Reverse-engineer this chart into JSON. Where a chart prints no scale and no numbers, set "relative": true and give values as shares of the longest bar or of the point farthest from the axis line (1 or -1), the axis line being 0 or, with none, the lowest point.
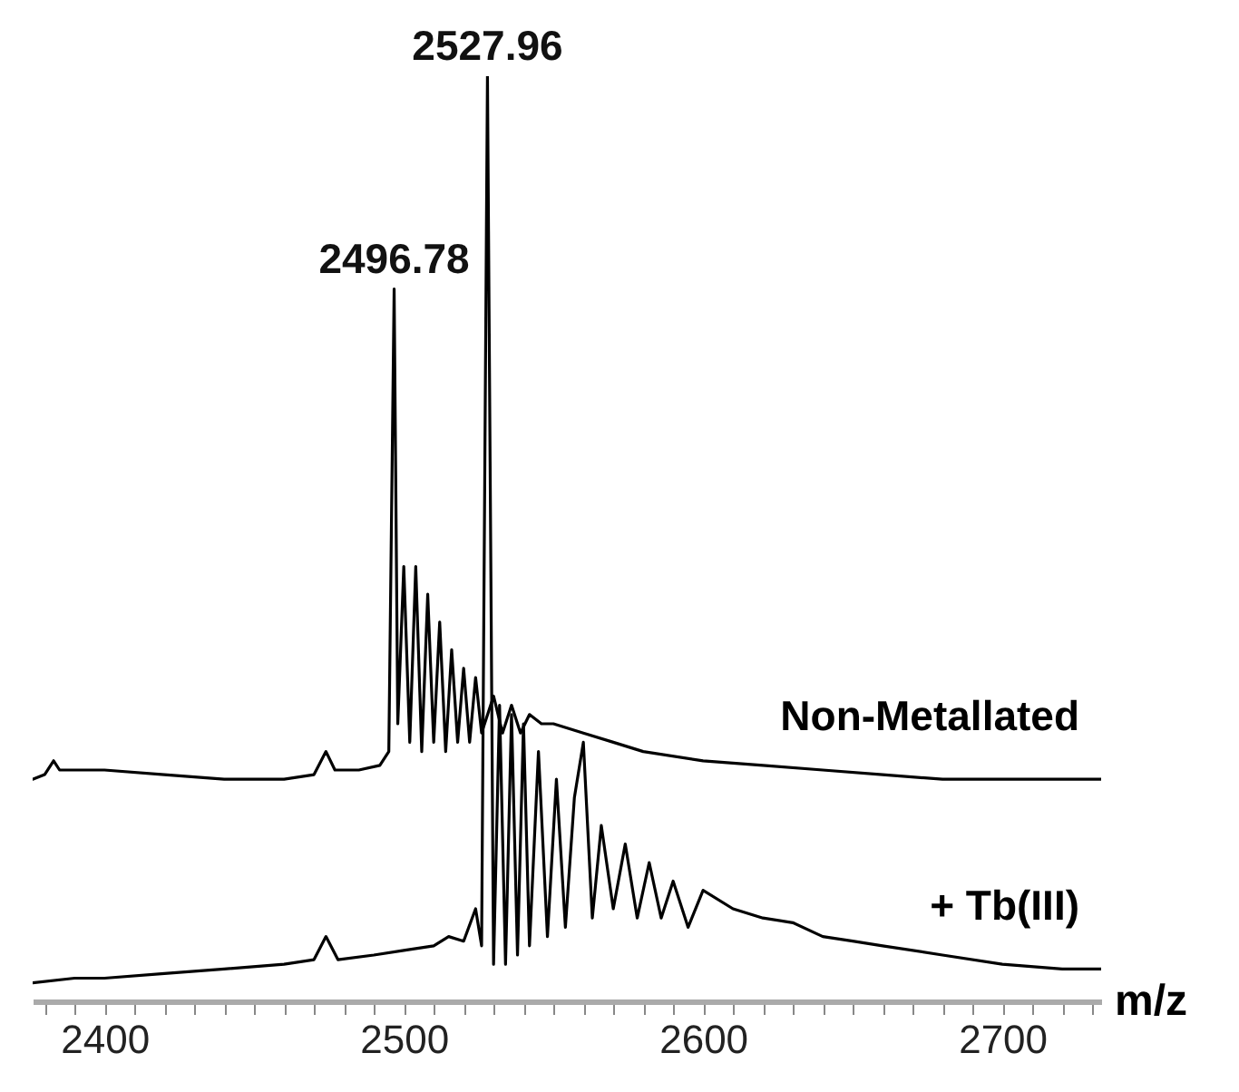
{
  "chart_data": {
    "type": "line",
    "relative": true,
    "xlabel": "m/z",
    "xlim": [
      2376,
      2733
    ],
    "xticks": [
      {
        "value": 2380,
        "label": null
      },
      {
        "value": 2390,
        "label": null
      },
      2400,
      {
        "value": 2410,
        "label": null
      },
      {
        "value": 2420,
        "label": null
      },
      {
        "value": 2430,
        "label": null
      },
      {
        "value": 2440,
        "label": null
      },
      {
        "value": 2450,
        "label": null
      },
      {
        "value": 2460,
        "label": null
      },
      {
        "value": 2470,
        "label": null
      },
      {
        "value": 2480,
        "label": null
      },
      {
        "value": 2490,
        "label": null
      },
      2500,
      {
        "value": 2510,
        "label": null
      },
      {
        "value": 2520,
        "label": null
      },
      {
        "value": 2530,
        "label": null
      },
      {
        "value": 2540,
        "label": null
      },
      {
        "value": 2550,
        "label": null
      },
      {
        "value": 2560,
        "label": null
      },
      {
        "value": 2570,
        "label": null
      },
      {
        "value": 2580,
        "label": null
      },
      {
        "value": 2590,
        "label": null
      },
      2600,
      {
        "value": 2610,
        "label": null
      },
      {
        "value": 2620,
        "label": null
      },
      {
        "value": 2630,
        "label": null
      },
      {
        "value": 2640,
        "label": null
      },
      {
        "value": 2650,
        "label": null
      },
      {
        "value": 2660,
        "label": null
      },
      {
        "value": 2670,
        "label": null
      },
      {
        "value": 2680,
        "label": null
      },
      {
        "value": 2690,
        "label": null
      },
      2700,
      {
        "value": 2710,
        "label": null
      },
      {
        "value": 2720,
        "label": null
      },
      {
        "value": 2730,
        "label": null
      }
    ],
    "series": [
      {
        "name": "Non-Metallated",
        "color": "#000000",
        "x": [
          2376,
          2380,
          2383,
          2385,
          2390,
          2400,
          2420,
          2440,
          2460,
          2470,
          2474,
          2477,
          2485,
          2492,
          2495,
          2496.78,
          2498,
          2500,
          2502,
          2504,
          2506,
          2508,
          2510,
          2512,
          2514,
          2516,
          2518,
          2520,
          2522,
          2524,
          2526,
          2530,
          2533,
          2536,
          2539,
          2542,
          2546,
          2550,
          2560,
          2570,
          2580,
          2600,
          2620,
          2640,
          2660,
          2680,
          2700,
          2733
        ],
        "values": [
          0.24,
          0.245,
          0.26,
          0.25,
          0.25,
          0.25,
          0.245,
          0.24,
          0.24,
          0.245,
          0.27,
          0.25,
          0.25,
          0.255,
          0.27,
          0.77,
          0.3,
          0.47,
          0.28,
          0.47,
          0.27,
          0.44,
          0.28,
          0.41,
          0.27,
          0.38,
          0.28,
          0.36,
          0.28,
          0.35,
          0.29,
          0.33,
          0.29,
          0.32,
          0.29,
          0.31,
          0.3,
          0.3,
          0.29,
          0.28,
          0.27,
          0.26,
          0.255,
          0.25,
          0.245,
          0.24,
          0.24,
          0.24
        ]
      },
      {
        "name": "+ Tb(III)",
        "color": "#000000",
        "x": [
          2376,
          2390,
          2400,
          2420,
          2440,
          2460,
          2470,
          2474,
          2478,
          2490,
          2500,
          2510,
          2515,
          2520,
          2524,
          2526,
          2527.96,
          2530,
          2532,
          2534,
          2536,
          2538,
          2540,
          2542,
          2545,
          2548,
          2551,
          2554,
          2557,
          2560,
          2563,
          2566,
          2570,
          2574,
          2578,
          2582,
          2586,
          2590,
          2595,
          2600,
          2610,
          2620,
          2630,
          2640,
          2650,
          2660,
          2680,
          2700,
          2720,
          2733
        ],
        "values": [
          0.02,
          0.025,
          0.025,
          0.03,
          0.035,
          0.04,
          0.045,
          0.07,
          0.045,
          0.05,
          0.055,
          0.06,
          0.07,
          0.065,
          0.1,
          0.06,
          1.0,
          0.04,
          0.32,
          0.04,
          0.31,
          0.05,
          0.3,
          0.06,
          0.27,
          0.07,
          0.24,
          0.08,
          0.22,
          0.28,
          0.09,
          0.19,
          0.1,
          0.17,
          0.09,
          0.15,
          0.09,
          0.13,
          0.08,
          0.12,
          0.1,
          0.09,
          0.085,
          0.07,
          0.065,
          0.06,
          0.05,
          0.04,
          0.035,
          0.035
        ]
      }
    ],
    "annotations": [
      {
        "text": "2496.78",
        "x": 2496.78,
        "y": 0.77
      },
      {
        "text": "2527.96",
        "x": 2527.96,
        "y": 1.0
      }
    ]
  }
}
